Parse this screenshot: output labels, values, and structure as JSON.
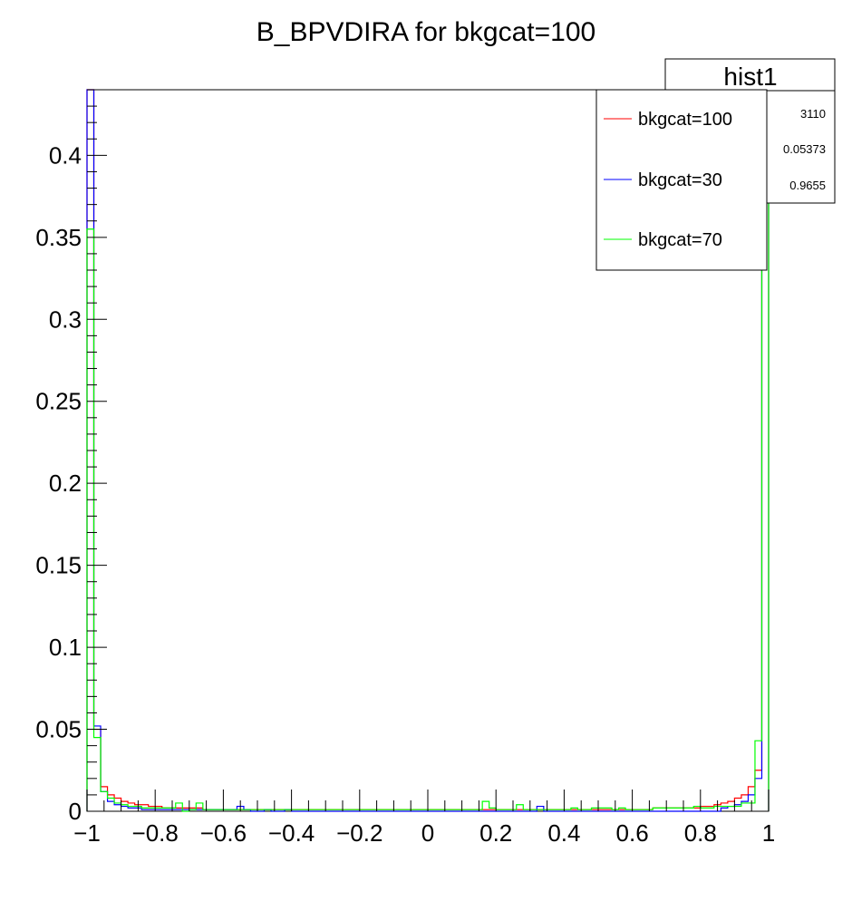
{
  "chart_data": {
    "type": "histogram",
    "title": "B_BPVDIRA for bkgcat=100",
    "xlim": [
      -1,
      1
    ],
    "ylim": [
      0,
      0.44
    ],
    "x_ticks": [
      -1,
      -0.8,
      -0.6,
      -0.4,
      -0.2,
      0,
      0.2,
      0.4,
      0.6,
      0.8,
      1
    ],
    "x_tick_labels": [
      "−1",
      "−0.8",
      "−0.6",
      "−0.4",
      "−0.2",
      "0",
      "0.2",
      "0.4",
      "0.6",
      "0.8",
      "1"
    ],
    "y_ticks": [
      0,
      0.05,
      0.1,
      0.15,
      0.2,
      0.25,
      0.3,
      0.35,
      0.4
    ],
    "y_tick_labels": [
      "0",
      "0.05",
      "0.1",
      "0.15",
      "0.2",
      "0.25",
      "0.3",
      "0.35",
      "0.4"
    ],
    "bins": 100,
    "stats_box": {
      "title": "hist1",
      "values": [
        "3110",
        "0.05373",
        "0.9655"
      ]
    },
    "legend": [
      {
        "name": "bkgcat=100",
        "color": "#ff0000"
      },
      {
        "name": "bkgcat=30",
        "color": "#0000ff"
      },
      {
        "name": "bkgcat=70",
        "color": "#00ff00"
      }
    ],
    "series": [
      {
        "name": "bkgcat=100",
        "color": "#ff0000",
        "values": [
          0.44,
          0.05,
          0.015,
          0.01,
          0.008,
          0.006,
          0.005,
          0.004,
          0.004,
          0.003,
          0.003,
          0.002,
          0.002,
          0.002,
          0.002,
          0.002,
          0.002,
          0.001,
          0.001,
          0.001,
          0.001,
          0.001,
          0.001,
          0.001,
          0.001,
          0.001,
          0.001,
          0.001,
          0.001,
          0.001,
          0.001,
          0.001,
          0.001,
          0.001,
          0.001,
          0.001,
          0.001,
          0.001,
          0.001,
          0.001,
          0.001,
          0.001,
          0.001,
          0.001,
          0.001,
          0.001,
          0.001,
          0.001,
          0.001,
          0.001,
          0.001,
          0.001,
          0.001,
          0.001,
          0.001,
          0.001,
          0.001,
          0.001,
          0.001,
          0.001,
          0.001,
          0.001,
          0.001,
          0.001,
          0.001,
          0.001,
          0.001,
          0.001,
          0.001,
          0.001,
          0.001,
          0.001,
          0.001,
          0.001,
          0.001,
          0.001,
          0.001,
          0.001,
          0.001,
          0.001,
          0.001,
          0.001,
          0.001,
          0.002,
          0.002,
          0.002,
          0.002,
          0.002,
          0.002,
          0.002,
          0.003,
          0.003,
          0.004,
          0.005,
          0.006,
          0.008,
          0.01,
          0.015,
          0.025,
          0.38
        ]
      },
      {
        "name": "bkgcat=30",
        "color": "#0000ff",
        "values": [
          0.44,
          0.052,
          0.012,
          0.006,
          0.004,
          0.003,
          0.002,
          0.002,
          0.001,
          0.001,
          0.001,
          0.001,
          0.001,
          0.001,
          0.001,
          0.001,
          0.001,
          0.001,
          0.001,
          0.001,
          0.001,
          0.001,
          0.003,
          0.001,
          0.0,
          0.0,
          0.001,
          0.0,
          0.0,
          0.001,
          0.0,
          0.0,
          0.0,
          0.0,
          0.0,
          0.0,
          0.0,
          0.0,
          0.0,
          0.0,
          0.0,
          0.0,
          0.0,
          0.0,
          0.0,
          0.0,
          0.0,
          0.0,
          0.0,
          0.0,
          0.0,
          0.0,
          0.0,
          0.0,
          0.0,
          0.0,
          0.0,
          0.0,
          0.0,
          0.0,
          0.0,
          0.0,
          0.0,
          0.0,
          0.0,
          0.0,
          0.003,
          0.0,
          0.0,
          0.0,
          0.0,
          0.0,
          0.0,
          0.0,
          0.0,
          0.0,
          0.0,
          0.0,
          0.0,
          0.0,
          0.0,
          0.0,
          0.0,
          0.0,
          0.0,
          0.0,
          0.0,
          0.0,
          0.0,
          0.0,
          0.0,
          0.0,
          0.0,
          0.002,
          0.003,
          0.004,
          0.006,
          0.01,
          0.02,
          0.44
        ]
      },
      {
        "name": "bkgcat=70",
        "color": "#00ff00",
        "values": [
          0.355,
          0.045,
          0.012,
          0.008,
          0.005,
          0.004,
          0.003,
          0.003,
          0.002,
          0.002,
          0.002,
          0.002,
          0.002,
          0.005,
          0.0,
          0.001,
          0.005,
          0.001,
          0.001,
          0.001,
          0.001,
          0.001,
          0.001,
          0.001,
          0.001,
          0.001,
          0.001,
          0.001,
          0.001,
          0.001,
          0.001,
          0.001,
          0.001,
          0.001,
          0.001,
          0.001,
          0.001,
          0.001,
          0.001,
          0.001,
          0.001,
          0.001,
          0.001,
          0.001,
          0.001,
          0.001,
          0.001,
          0.001,
          0.001,
          0.001,
          0.001,
          0.001,
          0.001,
          0.001,
          0.001,
          0.001,
          0.001,
          0.001,
          0.006,
          0.002,
          0.001,
          0.001,
          0.001,
          0.004,
          0.001,
          0.001,
          0.001,
          0.001,
          0.001,
          0.001,
          0.001,
          0.002,
          0.001,
          0.001,
          0.002,
          0.002,
          0.002,
          0.001,
          0.002,
          0.001,
          0.001,
          0.001,
          0.001,
          0.002,
          0.002,
          0.002,
          0.002,
          0.002,
          0.002,
          0.003,
          0.002,
          0.002,
          0.003,
          0.003,
          0.003,
          0.003,
          0.005,
          0.005,
          0.043,
          0.38
        ]
      }
    ]
  }
}
